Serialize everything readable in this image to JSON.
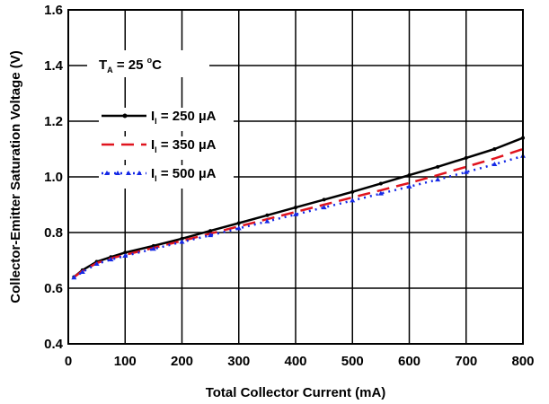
{
  "chart_data": {
    "type": "line",
    "xlabel": "Total Collector Current (mA)",
    "ylabel": "Collector-Emitter Saturation Voltage (V)",
    "xlim": [
      0,
      800
    ],
    "ylim": [
      0.4,
      1.6
    ],
    "xticks": [
      0,
      100,
      200,
      300,
      400,
      500,
      600,
      700,
      800
    ],
    "yticks": [
      0.4,
      0.6,
      0.8,
      1.0,
      1.2,
      1.4,
      1.6
    ],
    "xtick_labels": [
      "0",
      "100",
      "200",
      "300",
      "400",
      "500",
      "600",
      "700",
      "800"
    ],
    "ytick_labels": [
      "0.4",
      "0.6",
      "0.8",
      "1.0",
      "1.2",
      "1.4",
      "1.6"
    ],
    "grid": true,
    "legend_position": "top-left",
    "annotation": {
      "main": "T",
      "sub": "A",
      "rest": " = 25 ",
      "sup": "o",
      "unit": "C"
    },
    "series": [
      {
        "name": "I",
        "name_sub": "I",
        "name_rest": " = 250 µA",
        "color": "#000000",
        "dash": "",
        "marker": "dot",
        "x": [
          10,
          25,
          50,
          75,
          100,
          150,
          200,
          250,
          300,
          350,
          400,
          450,
          500,
          550,
          600,
          650,
          700,
          750,
          800
        ],
        "y": [
          0.64,
          0.665,
          0.695,
          0.712,
          0.728,
          0.752,
          0.778,
          0.806,
          0.834,
          0.862,
          0.89,
          0.918,
          0.946,
          0.976,
          1.006,
          1.036,
          1.068,
          1.1,
          1.14
        ]
      },
      {
        "name": "I",
        "name_sub": "I",
        "name_rest": " = 350 µA",
        "color": "#e0141e",
        "dash": "14,8",
        "marker": "none",
        "x": [
          10,
          25,
          50,
          75,
          100,
          150,
          200,
          250,
          300,
          350,
          400,
          450,
          500,
          550,
          600,
          650,
          700,
          750,
          800
        ],
        "y": [
          0.64,
          0.662,
          0.69,
          0.707,
          0.72,
          0.745,
          0.77,
          0.796,
          0.822,
          0.848,
          0.874,
          0.9,
          0.926,
          0.952,
          0.978,
          1.006,
          1.036,
          1.066,
          1.1
        ]
      },
      {
        "name": "I",
        "name_sub": "I",
        "name_rest": " = 500 µA",
        "color": "#1428e6",
        "dash": "2,5",
        "marker": "triangle",
        "x": [
          10,
          25,
          50,
          75,
          100,
          150,
          200,
          250,
          300,
          350,
          400,
          450,
          500,
          550,
          600,
          650,
          700,
          750,
          800
        ],
        "y": [
          0.638,
          0.658,
          0.687,
          0.703,
          0.716,
          0.741,
          0.766,
          0.79,
          0.815,
          0.84,
          0.865,
          0.89,
          0.915,
          0.94,
          0.965,
          0.99,
          1.017,
          1.045,
          1.075
        ]
      }
    ]
  }
}
